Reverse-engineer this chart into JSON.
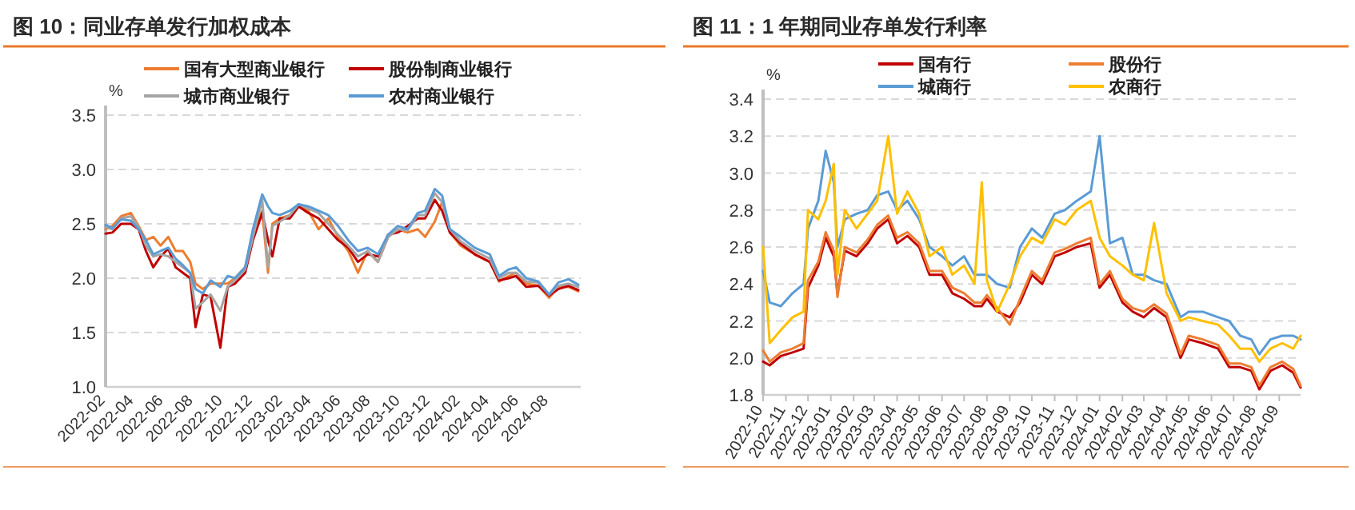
{
  "chart_data": [
    {
      "type": "line",
      "title": "图 10：同业存单发行加权成本",
      "ylabel": "%",
      "grid": "y",
      "legend": "top",
      "x": [
        "2022-02-01",
        "2022-02-15",
        "2022-03-05",
        "2022-03-25",
        "2022-04-10",
        "2022-04-25",
        "2022-05-10",
        "2022-05-25",
        "2022-06-10",
        "2022-06-25",
        "2022-07-10",
        "2022-07-25",
        "2022-08-05",
        "2022-08-20",
        "2022-09-05",
        "2022-09-25",
        "2022-10-10",
        "2022-10-25",
        "2022-11-15",
        "2022-12-01",
        "2022-12-20",
        "2023-01-01",
        "2023-01-10",
        "2023-01-25",
        "2023-02-15",
        "2023-03-05",
        "2023-03-25",
        "2023-04-15",
        "2023-05-05",
        "2023-05-25",
        "2023-06-15",
        "2023-07-05",
        "2023-07-25",
        "2023-08-15",
        "2023-09-05",
        "2023-09-25",
        "2023-10-15",
        "2023-11-05",
        "2023-11-20",
        "2023-12-10",
        "2023-12-25",
        "2024-01-10",
        "2024-02-01",
        "2024-03-01",
        "2024-04-01",
        "2024-04-20",
        "2024-05-10",
        "2024-05-25",
        "2024-06-15",
        "2024-07-10",
        "2024-08-01",
        "2024-08-20",
        "2024-09-10",
        "2024-09-30"
      ],
      "xlim": [
        "2022-02-01",
        "2024-10-05"
      ],
      "xticks": [
        "2022-02",
        "2022-04",
        "2022-06",
        "2022-08",
        "2022-10",
        "2022-12",
        "2023-02",
        "2023-04",
        "2023-06",
        "2023-08",
        "2023-10",
        "2023-12",
        "2024-02",
        "2024-04",
        "2024-06",
        "2024-08"
      ],
      "ylim": [
        1.0,
        3.5
      ],
      "yticks": [
        {
          "value": 1.0,
          "label": "1.0"
        },
        {
          "value": 1.5,
          "label": "1.5"
        },
        {
          "value": 2.0,
          "label": "2.0"
        },
        {
          "value": 2.5,
          "label": "2.5"
        },
        {
          "value": 3.0,
          "label": "3.0"
        },
        {
          "value": 3.5,
          "label": "3.5"
        }
      ],
      "series": [
        {
          "name": "国有大型商业银行",
          "color": "#ed7d31",
          "values": [
            2.45,
            2.48,
            2.57,
            2.6,
            2.48,
            2.35,
            2.38,
            2.3,
            2.38,
            2.25,
            2.25,
            2.15,
            1.95,
            1.9,
            1.95,
            1.95,
            1.95,
            2.0,
            2.1,
            2.4,
            2.62,
            2.05,
            2.5,
            2.55,
            2.58,
            2.67,
            2.62,
            2.45,
            2.55,
            2.38,
            2.25,
            2.05,
            2.25,
            2.15,
            2.38,
            2.45,
            2.42,
            2.45,
            2.38,
            2.52,
            2.7,
            2.42,
            2.3,
            2.22,
            2.15,
            1.97,
            2.02,
            2.05,
            1.95,
            1.93,
            1.82,
            1.92,
            1.92,
            1.88
          ]
        },
        {
          "name": "股份制商业银行",
          "color": "#c00000",
          "values": [
            2.41,
            2.42,
            2.5,
            2.5,
            2.45,
            2.25,
            2.1,
            2.2,
            2.27,
            2.1,
            2.05,
            2.0,
            1.55,
            1.85,
            1.83,
            1.36,
            1.92,
            1.95,
            2.05,
            2.35,
            2.6,
            2.35,
            2.2,
            2.55,
            2.55,
            2.66,
            2.6,
            2.55,
            2.45,
            2.35,
            2.28,
            2.15,
            2.22,
            2.2,
            2.4,
            2.42,
            2.48,
            2.55,
            2.55,
            2.72,
            2.62,
            2.42,
            2.32,
            2.22,
            2.15,
            1.98,
            2.0,
            2.02,
            1.92,
            1.93,
            1.84,
            1.9,
            1.93,
            1.89
          ]
        },
        {
          "name": "城市商业银行",
          "color": "#a5a5a5",
          "values": [
            2.47,
            2.45,
            2.55,
            2.57,
            2.47,
            2.3,
            2.2,
            2.22,
            2.2,
            2.15,
            2.1,
            2.05,
            1.72,
            1.78,
            1.85,
            1.7,
            1.92,
            1.98,
            2.08,
            2.38,
            2.72,
            2.1,
            2.48,
            2.52,
            2.58,
            2.68,
            2.64,
            2.6,
            2.5,
            2.4,
            2.3,
            2.2,
            2.25,
            2.15,
            2.38,
            2.45,
            2.44,
            2.58,
            2.58,
            2.78,
            2.7,
            2.45,
            2.34,
            2.25,
            2.18,
            2.0,
            2.05,
            2.05,
            1.97,
            1.96,
            1.85,
            1.93,
            1.95,
            1.92
          ]
        },
        {
          "name": "农村商业银行",
          "color": "#5b9bd5",
          "values": [
            2.49,
            2.46,
            2.54,
            2.53,
            2.45,
            2.35,
            2.22,
            2.25,
            2.28,
            2.18,
            2.12,
            2.05,
            1.9,
            1.86,
            1.98,
            1.92,
            2.02,
            2.0,
            2.1,
            2.45,
            2.77,
            2.66,
            2.6,
            2.58,
            2.62,
            2.68,
            2.66,
            2.62,
            2.58,
            2.48,
            2.35,
            2.25,
            2.28,
            2.22,
            2.4,
            2.48,
            2.45,
            2.6,
            2.62,
            2.82,
            2.76,
            2.45,
            2.38,
            2.28,
            2.22,
            2.02,
            2.08,
            2.1,
            2.0,
            1.97,
            1.85,
            1.96,
            1.99,
            1.94
          ]
        }
      ]
    },
    {
      "type": "line",
      "title": "图 11：1 年期同业存单发行利率",
      "ylabel": "%",
      "grid": "y",
      "legend": "top",
      "x": [
        "2022-10-01",
        "2022-10-10",
        "2022-10-25",
        "2022-11-10",
        "2022-11-25",
        "2022-12-01",
        "2022-12-15",
        "2022-12-25",
        "2023-01-05",
        "2023-01-10",
        "2023-01-20",
        "2023-02-05",
        "2023-02-20",
        "2023-03-05",
        "2023-03-20",
        "2023-04-01",
        "2023-04-15",
        "2023-05-01",
        "2023-05-15",
        "2023-06-01",
        "2023-06-15",
        "2023-07-01",
        "2023-07-15",
        "2023-07-25",
        "2023-08-01",
        "2023-08-15",
        "2023-09-01",
        "2023-09-15",
        "2023-10-01",
        "2023-10-15",
        "2023-11-01",
        "2023-11-15",
        "2023-12-01",
        "2023-12-20",
        "2024-01-01",
        "2024-01-15",
        "2024-02-01",
        "2024-02-15",
        "2024-03-01",
        "2024-03-15",
        "2024-04-01",
        "2024-04-20",
        "2024-05-01",
        "2024-05-20",
        "2024-06-10",
        "2024-06-25",
        "2024-07-10",
        "2024-07-25",
        "2024-08-05",
        "2024-08-20",
        "2024-09-05",
        "2024-09-20",
        "2024-09-30"
      ],
      "xlim": [
        "2022-10-01",
        "2024-09-30"
      ],
      "xticks": [
        "2022-10",
        "2022-11",
        "2022-12",
        "2023-01",
        "2023-02",
        "2023-03",
        "2023-04",
        "2023-05",
        "2023-06",
        "2023-07",
        "2023-08",
        "2023-09",
        "2023-10",
        "2023-11",
        "2023-12",
        "2024-01",
        "2024-02",
        "2024-03",
        "2024-04",
        "2024-05",
        "2024-06",
        "2024-07",
        "2024-08",
        "2024-09"
      ],
      "ylim": [
        1.8,
        3.4
      ],
      "yticks": [
        {
          "value": 1.8,
          "label": "1.8"
        },
        {
          "value": 2.0,
          "label": "2.0"
        },
        {
          "value": 2.2,
          "label": "2.2"
        },
        {
          "value": 2.4,
          "label": "2.4"
        },
        {
          "value": 2.6,
          "label": "2.6"
        },
        {
          "value": 2.8,
          "label": "2.8"
        },
        {
          "value": 3.0,
          "label": "3.0"
        },
        {
          "value": 3.2,
          "label": "3.2"
        },
        {
          "value": 3.4,
          "label": "3.4"
        }
      ],
      "series": [
        {
          "name": "国有行",
          "color": "#c00000",
          "values": [
            1.98,
            1.96,
            2.01,
            2.03,
            2.05,
            2.38,
            2.5,
            2.65,
            2.55,
            2.35,
            2.58,
            2.55,
            2.62,
            2.7,
            2.75,
            2.62,
            2.66,
            2.6,
            2.45,
            2.45,
            2.35,
            2.32,
            2.28,
            2.28,
            2.32,
            2.25,
            2.22,
            2.3,
            2.45,
            2.4,
            2.55,
            2.57,
            2.6,
            2.62,
            2.38,
            2.45,
            2.3,
            2.25,
            2.22,
            2.27,
            2.22,
            2.0,
            2.1,
            2.08,
            2.05,
            1.95,
            1.95,
            1.93,
            1.83,
            1.93,
            1.96,
            1.92,
            1.84
          ]
        },
        {
          "name": "股份行",
          "color": "#ed7d31",
          "values": [
            2.04,
            1.98,
            2.03,
            2.05,
            2.08,
            2.42,
            2.52,
            2.68,
            2.58,
            2.33,
            2.6,
            2.57,
            2.64,
            2.72,
            2.77,
            2.65,
            2.68,
            2.62,
            2.47,
            2.47,
            2.38,
            2.35,
            2.3,
            2.3,
            2.34,
            2.27,
            2.18,
            2.32,
            2.47,
            2.42,
            2.57,
            2.59,
            2.62,
            2.65,
            2.4,
            2.47,
            2.32,
            2.27,
            2.25,
            2.29,
            2.24,
            2.02,
            2.12,
            2.1,
            2.07,
            1.97,
            1.97,
            1.95,
            1.85,
            1.95,
            1.98,
            1.94,
            1.85
          ]
        },
        {
          "name": "城商行",
          "color": "#5b9bd5",
          "values": [
            2.47,
            2.3,
            2.28,
            2.35,
            2.4,
            2.7,
            2.85,
            3.12,
            2.95,
            2.6,
            2.75,
            2.78,
            2.8,
            2.88,
            2.9,
            2.8,
            2.85,
            2.75,
            2.6,
            2.55,
            2.5,
            2.55,
            2.45,
            2.45,
            2.45,
            2.4,
            2.38,
            2.6,
            2.7,
            2.65,
            2.78,
            2.8,
            2.85,
            2.9,
            3.2,
            2.62,
            2.65,
            2.45,
            2.45,
            2.42,
            2.4,
            2.22,
            2.25,
            2.25,
            2.22,
            2.2,
            2.12,
            2.1,
            2.02,
            2.1,
            2.12,
            2.12,
            2.1
          ]
        },
        {
          "name": "农商行",
          "color": "#ffc000",
          "values": [
            2.6,
            2.08,
            2.15,
            2.22,
            2.25,
            2.8,
            2.75,
            2.85,
            3.05,
            2.45,
            2.8,
            2.7,
            2.78,
            2.85,
            3.2,
            2.78,
            2.9,
            2.78,
            2.55,
            2.6,
            2.45,
            2.5,
            2.4,
            2.95,
            2.42,
            2.25,
            2.4,
            2.55,
            2.65,
            2.62,
            2.75,
            2.72,
            2.8,
            2.85,
            2.65,
            2.55,
            2.5,
            2.45,
            2.42,
            2.73,
            2.35,
            2.2,
            2.22,
            2.2,
            2.18,
            2.12,
            2.05,
            2.05,
            1.98,
            2.05,
            2.08,
            2.05,
            2.12
          ]
        }
      ]
    }
  ]
}
